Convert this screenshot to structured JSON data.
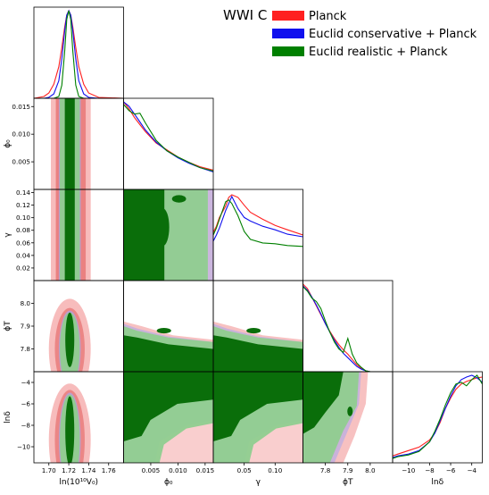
{
  "chart_data": {
    "type": "triangle_corner",
    "title": "WWI C",
    "colors": {
      "planck": "#ff2020",
      "conservative": "#1010ee",
      "realistic": "#008000"
    },
    "series": [
      {
        "name": "Planck",
        "key": "planck"
      },
      {
        "name": "Euclid conservative + Planck",
        "key": "conservative"
      },
      {
        "name": "Euclid realistic + Planck",
        "key": "realistic"
      }
    ],
    "parameters": [
      {
        "key": "lnV0",
        "label": "ln(10¹⁰V₀)",
        "range": [
          1.685,
          1.775
        ],
        "ticks": [
          1.7,
          1.72,
          1.74,
          1.76
        ],
        "tick_labels": [
          "1.70",
          "1.72",
          "1.74",
          "1.76"
        ]
      },
      {
        "key": "phi0",
        "label": "ϕ₀",
        "range": [
          0.0,
          0.0165
        ],
        "ticks": [
          0.005,
          0.01,
          0.015
        ],
        "tick_labels": [
          "0.005",
          "0.010",
          "0.015"
        ]
      },
      {
        "key": "gamma",
        "label": "γ",
        "range": [
          0.0,
          0.145
        ],
        "ticks": [
          0.02,
          0.04,
          0.06,
          0.08,
          0.1,
          0.12,
          0.14
        ],
        "tick_labels": [
          "0.02",
          "0.04",
          "0.06",
          "0.08",
          "0.10",
          "0.12",
          "0.14"
        ],
        "x_ticks": [
          0.05,
          0.1
        ],
        "x_tick_labels": [
          "0.05",
          "0.10"
        ]
      },
      {
        "key": "phiT",
        "label": "ϕT",
        "range": [
          7.7,
          8.1
        ],
        "ticks": [
          7.8,
          7.9,
          8.0
        ],
        "tick_labels": [
          "7.8",
          "7.9",
          "8.0"
        ]
      },
      {
        "key": "lndelta",
        "label": "lnδ",
        "range": [
          -11.5,
          -3.0
        ],
        "ticks": [
          -10,
          -8,
          -6,
          -4
        ],
        "tick_labels": [
          "−10",
          "−8",
          "−6",
          "−4"
        ]
      }
    ],
    "marginals": [
      {
        "param": "lnV0",
        "x": [
          1.685,
          1.695,
          1.7,
          1.705,
          1.71,
          1.713,
          1.716,
          1.718,
          1.72,
          1.722,
          1.724,
          1.727,
          1.73,
          1.735,
          1.74,
          1.75,
          1.775
        ],
        "planck": [
          0,
          0.02,
          0.06,
          0.16,
          0.36,
          0.58,
          0.82,
          0.95,
          1.0,
          0.95,
          0.82,
          0.58,
          0.36,
          0.16,
          0.06,
          0.01,
          0
        ],
        "conservative": [
          0,
          0,
          0.01,
          0.05,
          0.2,
          0.45,
          0.78,
          0.95,
          1.0,
          0.95,
          0.78,
          0.45,
          0.2,
          0.05,
          0.01,
          0,
          0
        ],
        "realistic": [
          0,
          0,
          0,
          0,
          0.02,
          0.15,
          0.55,
          0.9,
          1.0,
          0.9,
          0.55,
          0.15,
          0.02,
          0,
          0,
          0,
          0
        ]
      },
      {
        "param": "phi0",
        "x": [
          0,
          0.001,
          0.002,
          0.003,
          0.004,
          0.006,
          0.008,
          0.01,
          0.012,
          0.014,
          0.0165
        ],
        "planck": [
          1.0,
          0.92,
          0.82,
          0.74,
          0.66,
          0.53,
          0.45,
          0.37,
          0.31,
          0.26,
          0.22
        ],
        "conservative": [
          1.0,
          0.95,
          0.86,
          0.77,
          0.68,
          0.54,
          0.44,
          0.36,
          0.3,
          0.25,
          0.2
        ],
        "realistic": [
          0.97,
          0.9,
          0.86,
          0.87,
          0.76,
          0.56,
          0.44,
          0.37,
          0.31,
          0.25,
          0.21
        ]
      },
      {
        "param": "gamma",
        "x": [
          0,
          0.005,
          0.01,
          0.02,
          0.025,
          0.03,
          0.04,
          0.05,
          0.06,
          0.08,
          0.1,
          0.12,
          0.145
        ],
        "planck": [
          0.55,
          0.62,
          0.72,
          0.85,
          0.95,
          0.98,
          0.95,
          0.86,
          0.78,
          0.7,
          0.63,
          0.58,
          0.52
        ],
        "conservative": [
          0.45,
          0.52,
          0.6,
          0.8,
          0.88,
          0.96,
          0.82,
          0.72,
          0.68,
          0.62,
          0.58,
          0.53,
          0.5
        ],
        "realistic": [
          0.52,
          0.6,
          0.7,
          0.9,
          0.92,
          0.88,
          0.74,
          0.56,
          0.47,
          0.43,
          0.42,
          0.4,
          0.39
        ]
      },
      {
        "param": "phiT",
        "x": [
          7.7,
          7.72,
          7.74,
          7.76,
          7.78,
          7.8,
          7.82,
          7.84,
          7.86,
          7.88,
          7.9,
          7.92,
          7.94,
          7.96,
          7.98,
          8.0,
          8.1
        ],
        "planck": [
          1.0,
          0.95,
          0.85,
          0.75,
          0.65,
          0.55,
          0.46,
          0.38,
          0.31,
          0.25,
          0.2,
          0.14,
          0.08,
          0.04,
          0.01,
          0,
          0
        ],
        "conservative": [
          0.98,
          0.93,
          0.85,
          0.76,
          0.66,
          0.55,
          0.45,
          0.36,
          0.28,
          0.21,
          0.16,
          0.11,
          0.06,
          0.03,
          0.01,
          0,
          0
        ],
        "realistic": [
          0.97,
          0.92,
          0.84,
          0.8,
          0.72,
          0.58,
          0.45,
          0.34,
          0.26,
          0.22,
          0.38,
          0.2,
          0.1,
          0.05,
          0.01,
          0,
          0
        ]
      },
      {
        "param": "lndelta",
        "x": [
          -11.5,
          -11,
          -10,
          -9,
          -8,
          -7.5,
          -7,
          -6.5,
          -6,
          -5.5,
          -5,
          -4.5,
          -4,
          -3.5,
          -3
        ],
        "planck": [
          0.08,
          0.1,
          0.14,
          0.18,
          0.26,
          0.34,
          0.46,
          0.62,
          0.74,
          0.84,
          0.9,
          0.93,
          0.95,
          0.97,
          0.98
        ],
        "conservative": [
          0.06,
          0.08,
          0.1,
          0.14,
          0.24,
          0.34,
          0.48,
          0.62,
          0.76,
          0.88,
          0.95,
          0.98,
          1.0,
          0.97,
          0.92
        ],
        "realistic": [
          0.05,
          0.07,
          0.09,
          0.13,
          0.24,
          0.36,
          0.5,
          0.66,
          0.8,
          0.9,
          0.92,
          0.88,
          0.95,
          1.0,
          0.9
        ]
      }
    ]
  }
}
